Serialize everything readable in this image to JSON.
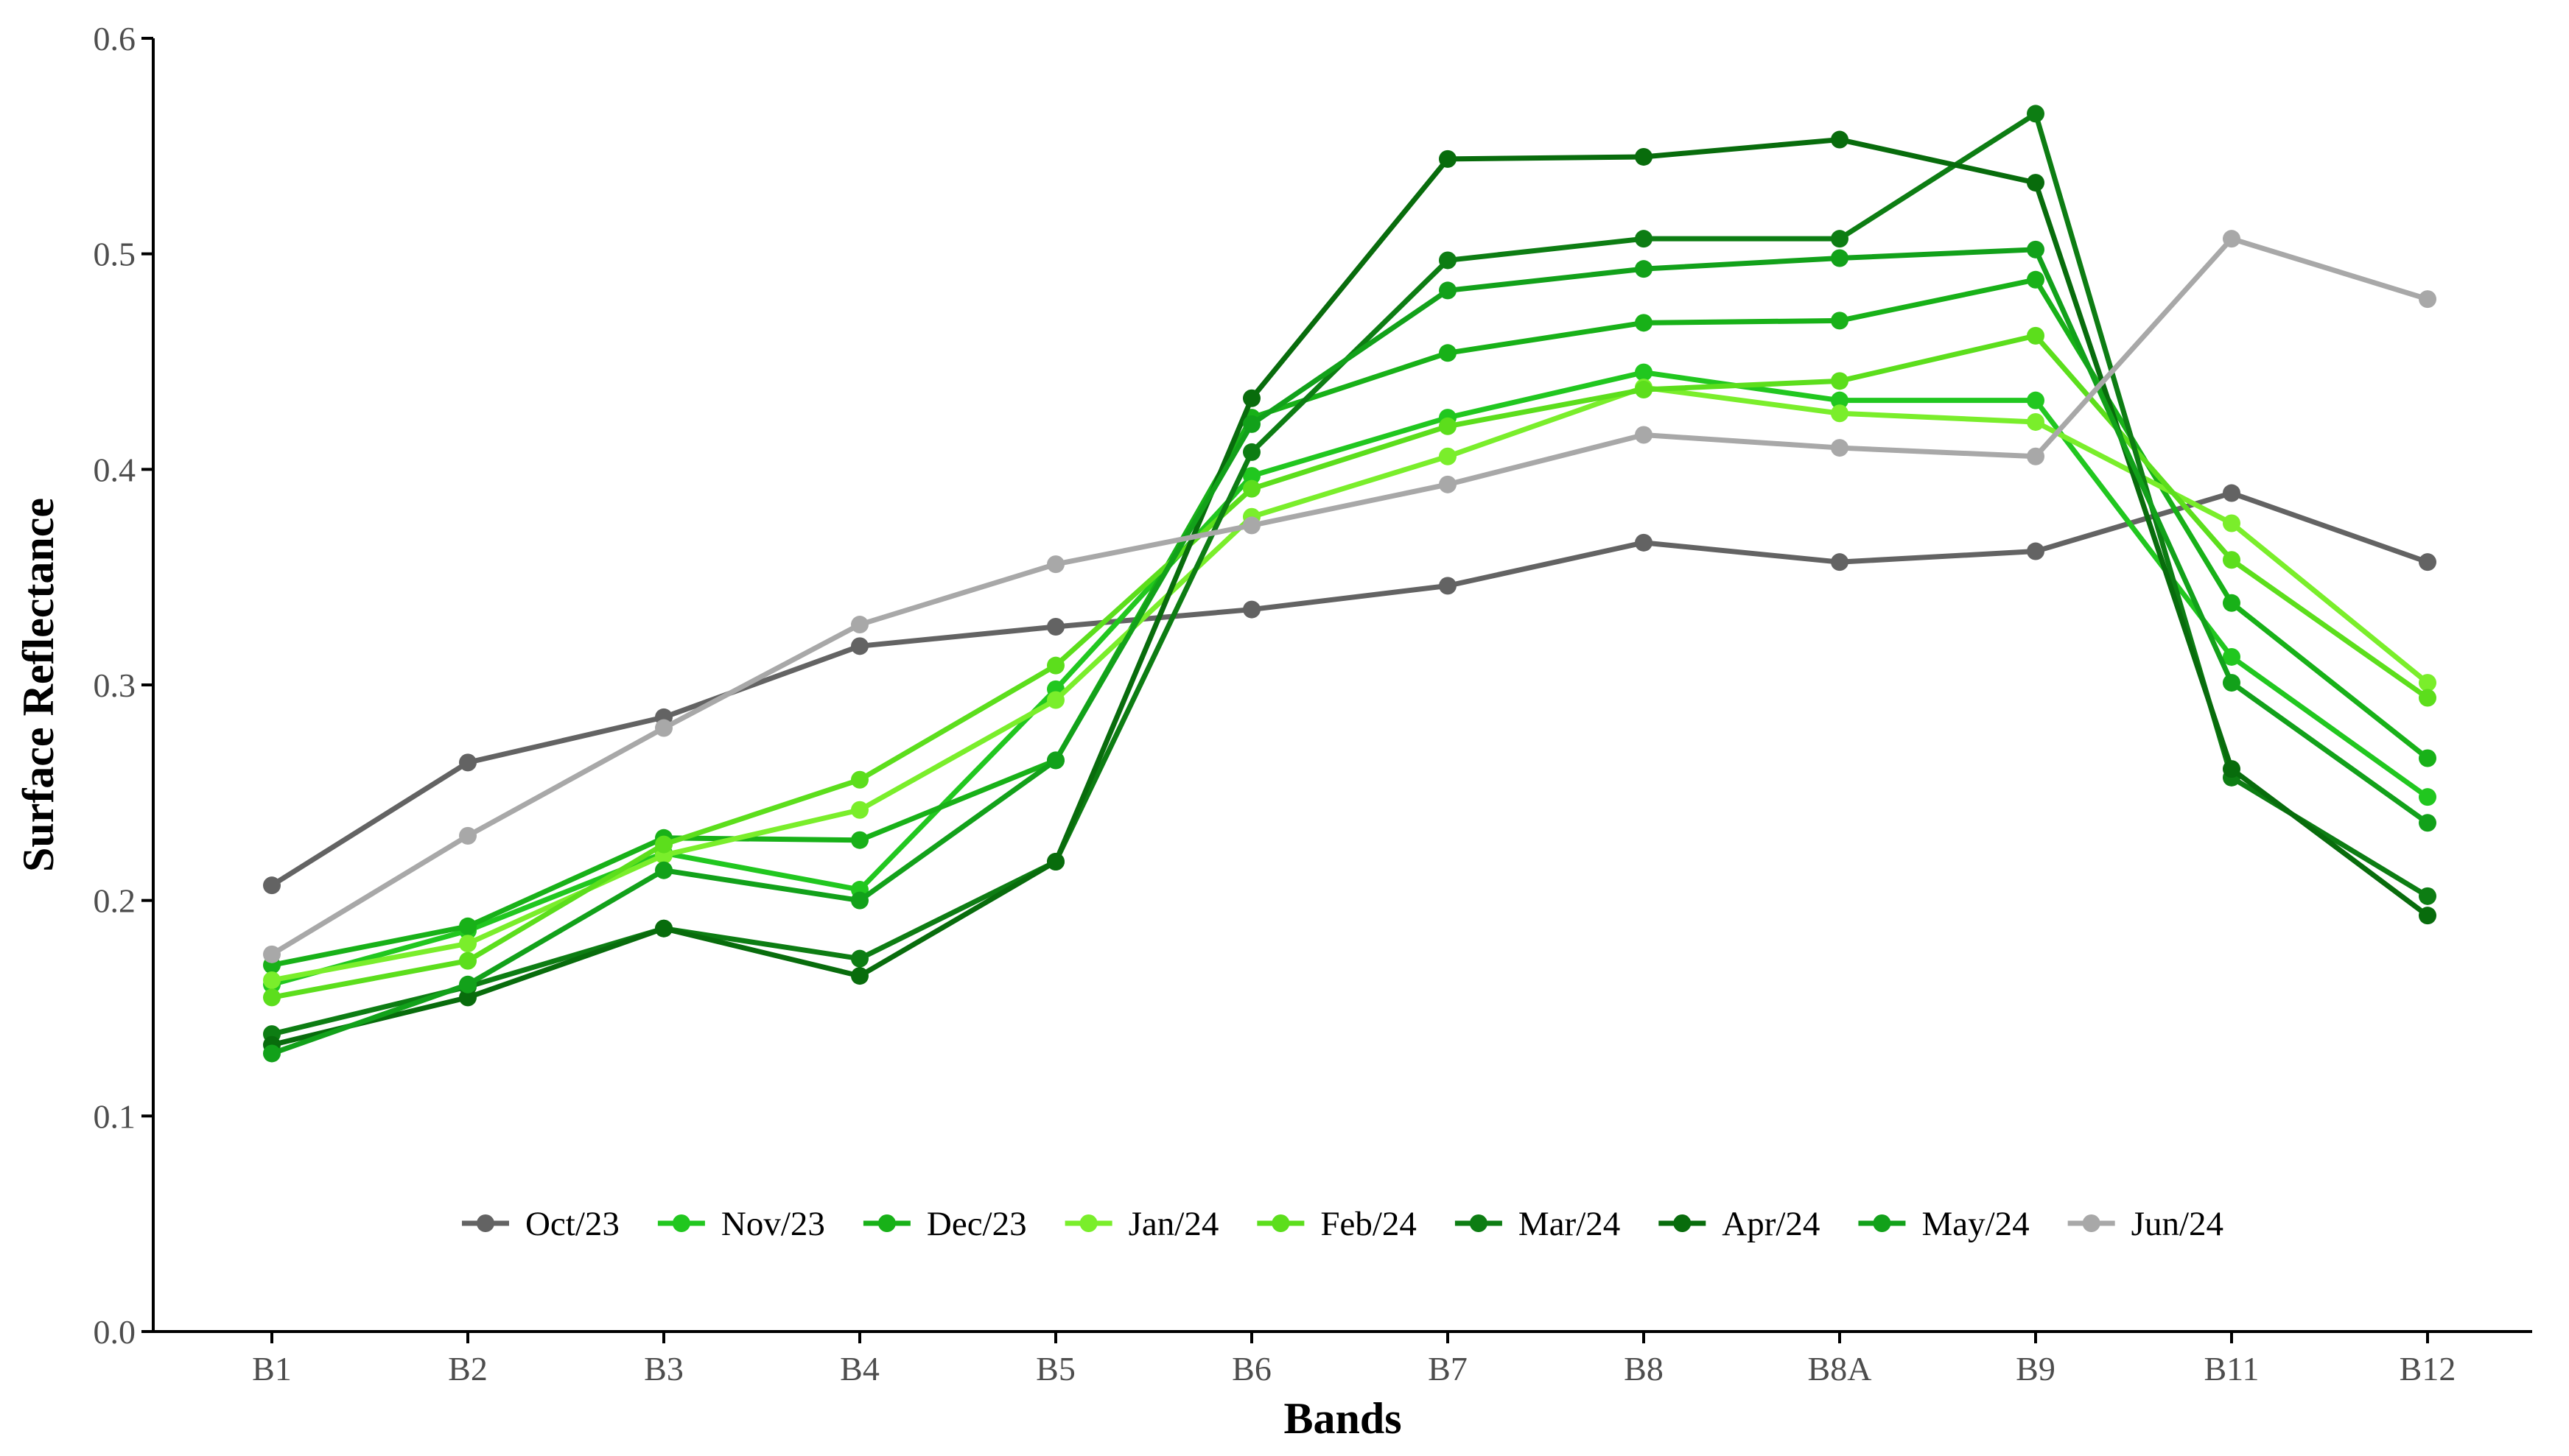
{
  "chart_data": {
    "type": "line",
    "title": "",
    "xlabel": "Bands",
    "ylabel": "Surface Reflectance",
    "categories": [
      "B1",
      "B2",
      "B3",
      "B4",
      "B5",
      "B6",
      "B7",
      "B8",
      "B8A",
      "B9",
      "B11",
      "B12"
    ],
    "ylim": [
      0,
      0.6
    ],
    "yticks": [
      "0.0",
      "0.1",
      "0.2",
      "0.3",
      "0.4",
      "0.5",
      "0.6"
    ],
    "grid": false,
    "legend_position": "bottom-inside",
    "series": [
      {
        "name": "Oct/23",
        "color": "#636363",
        "values": [
          0.207,
          0.264,
          0.285,
          0.318,
          0.327,
          0.335,
          0.346,
          0.366,
          0.357,
          0.362,
          0.389,
          0.357
        ]
      },
      {
        "name": "Nov/23",
        "color": "#21c71f",
        "values": [
          0.161,
          0.186,
          0.222,
          0.205,
          0.298,
          0.397,
          0.424,
          0.445,
          0.432,
          0.432,
          0.313,
          0.248
        ]
      },
      {
        "name": "Dec/23",
        "color": "#18b118",
        "values": [
          0.17,
          0.188,
          0.229,
          0.228,
          0.265,
          0.424,
          0.454,
          0.468,
          0.469,
          0.488,
          0.338,
          0.266
        ]
      },
      {
        "name": "Jan/24",
        "color": "#7aee2b",
        "values": [
          0.163,
          0.18,
          0.221,
          0.242,
          0.293,
          0.378,
          0.406,
          0.438,
          0.426,
          0.422,
          0.375,
          0.301
        ]
      },
      {
        "name": "Feb/24",
        "color": "#5cde1c",
        "values": [
          0.155,
          0.172,
          0.226,
          0.256,
          0.309,
          0.391,
          0.42,
          0.437,
          0.441,
          0.462,
          0.358,
          0.294
        ]
      },
      {
        "name": "Mar/24",
        "color": "#0d7d13",
        "values": [
          0.138,
          0.16,
          0.187,
          0.173,
          0.218,
          0.408,
          0.497,
          0.507,
          0.507,
          0.565,
          0.257,
          0.202
        ]
      },
      {
        "name": "Apr/24",
        "color": "#086c0c",
        "values": [
          0.133,
          0.155,
          0.187,
          0.165,
          0.218,
          0.433,
          0.544,
          0.545,
          0.553,
          0.533,
          0.261,
          0.193
        ]
      },
      {
        "name": "May/24",
        "color": "#12a11a",
        "values": [
          0.129,
          0.161,
          0.214,
          0.2,
          0.265,
          0.421,
          0.483,
          0.493,
          0.498,
          0.502,
          0.301,
          0.236
        ]
      },
      {
        "name": "Jun/24",
        "color": "#a8a8a8",
        "values": [
          0.175,
          0.23,
          0.28,
          0.328,
          0.356,
          0.374,
          0.393,
          0.416,
          0.41,
          0.406,
          0.507,
          0.479
        ]
      }
    ]
  }
}
